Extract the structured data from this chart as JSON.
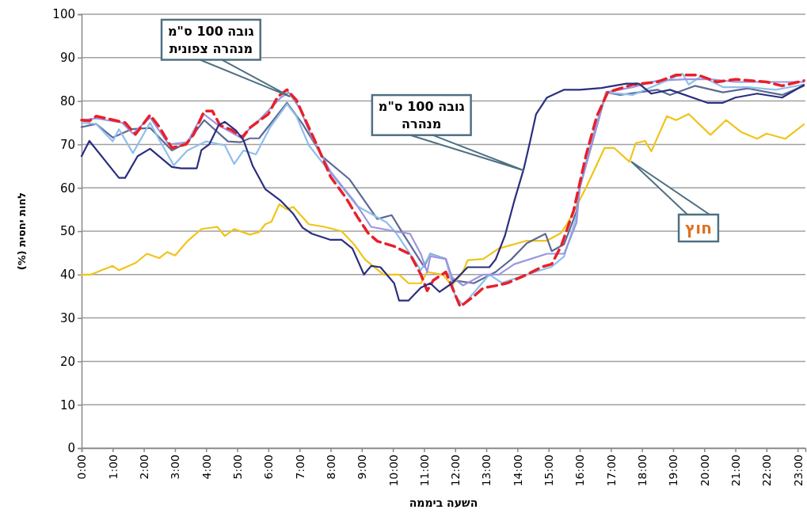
{
  "chart_data": {
    "type": "line",
    "xlabel": "השעה ביממה",
    "ylabel": "לחות יחסית (%)",
    "xlim": [
      0,
      23.25
    ],
    "ylim": [
      0,
      100
    ],
    "yticks": [
      0,
      10,
      20,
      30,
      40,
      50,
      60,
      70,
      80,
      90,
      100
    ],
    "xticks": [
      {
        "value": 0,
        "label": "0:00"
      },
      {
        "value": 1,
        "label": "1:00"
      },
      {
        "value": 2,
        "label": "2:00"
      },
      {
        "value": 3,
        "label": "3:00"
      },
      {
        "value": 4,
        "label": "4:00"
      },
      {
        "value": 5,
        "label": "5:00"
      },
      {
        "value": 6,
        "label": "6:00"
      },
      {
        "value": 7,
        "label": "7:00"
      },
      {
        "value": 8,
        "label": "8:00"
      },
      {
        "value": 9,
        "label": "9:00"
      },
      {
        "value": 10,
        "label": "10:00"
      },
      {
        "value": 11,
        "label": "11:00"
      },
      {
        "value": 12,
        "label": "12:00"
      },
      {
        "value": 13,
        "label": "13:00"
      },
      {
        "value": 14,
        "label": "14:00"
      },
      {
        "value": 15,
        "label": "15:00"
      },
      {
        "value": 16,
        "label": "16:00"
      },
      {
        "value": 17,
        "label": "17:00"
      },
      {
        "value": 18,
        "label": "18:00"
      },
      {
        "value": 19,
        "label": "19:00"
      },
      {
        "value": 20,
        "label": "20:00"
      },
      {
        "value": 21,
        "label": "21:00"
      },
      {
        "value": 22,
        "label": "22:00"
      },
      {
        "value": 23,
        "label": "23:00"
      }
    ],
    "grid": "y",
    "marker": "none",
    "series": [
      {
        "color": "#f0c419",
        "x": [
          0,
          0.3,
          1.0,
          1.2,
          1.74,
          2.1,
          2.5,
          2.75,
          3.0,
          3.4,
          3.85,
          4.36,
          4.6,
          4.9,
          5.4,
          5.7,
          5.9,
          6.1,
          6.35,
          6.6,
          6.8,
          7.3,
          7.8,
          8.35,
          8.75,
          9.1,
          9.7,
          10.2,
          10.5,
          10.9,
          11.1,
          11.6,
          11.9,
          12.25,
          12.4,
          12.9,
          13.4,
          14.3,
          14.95,
          15.4,
          15.6,
          16.2,
          16.8,
          17.1,
          17.6,
          17.8,
          18.1,
          18.3,
          18.8,
          19.1,
          19.5,
          20.2,
          20.7,
          21.2,
          21.7,
          22,
          22.6,
          23.2
        ],
        "values": [
          40,
          40,
          42,
          41,
          42.7,
          44.8,
          43.8,
          45.2,
          44.4,
          47.7,
          50.5,
          51,
          48.9,
          50.5,
          49.2,
          49.8,
          51.6,
          52.2,
          56.2,
          55,
          55.6,
          51.6,
          51,
          50,
          47,
          43.5,
          40,
          40,
          38,
          38,
          40.6,
          40,
          37.5,
          40.6,
          43.3,
          43.6,
          46,
          47.8,
          47.8,
          49.6,
          51.7,
          60,
          69.2,
          69.2,
          66,
          70.3,
          70.8,
          68.4,
          76.5,
          75.6,
          77,
          72.2,
          75.6,
          72.8,
          71.3,
          72.5,
          71.3,
          74.6
        ]
      },
      {
        "color": "#5c6a94",
        "x": [
          0,
          0.47,
          1.0,
          1.6,
          2.2,
          2.9,
          3.4,
          3.94,
          4.7,
          5.1,
          5.4,
          5.7,
          6.6,
          7.1,
          7.75,
          8.6,
          9.5,
          9.96,
          10.3,
          11.0,
          11.2,
          11.7,
          11.9,
          12.6,
          13.3,
          13.8,
          14.3,
          14.9,
          15.1,
          15.5,
          15.9,
          16.0,
          16.85,
          17.3,
          18.5,
          18.9,
          19.7,
          20.6,
          21.4,
          22.5,
          23.2
        ],
        "values": [
          74,
          74.7,
          71.6,
          73.5,
          73.8,
          68.6,
          70.5,
          75.6,
          70.7,
          70.5,
          71.4,
          71.4,
          79.6,
          74.7,
          67.1,
          62,
          52.8,
          53.7,
          49.7,
          41.8,
          44.8,
          43.6,
          38.7,
          38,
          40.6,
          43.5,
          47.2,
          49.4,
          45.4,
          47,
          54.6,
          60,
          82,
          81.4,
          82.6,
          81.4,
          83.5,
          82,
          82.9,
          81.4,
          83.5
        ]
      },
      {
        "color": "#8fbfec",
        "x": [
          0,
          0.47,
          1.0,
          1.2,
          1.65,
          2.2,
          2.5,
          2.96,
          3.4,
          4.0,
          4.6,
          4.9,
          5.2,
          5.6,
          6.06,
          6.6,
          6.9,
          7.3,
          8.1,
          8.85,
          9.8,
          10.1,
          10.9,
          11.2,
          11.7,
          12.0,
          12.25,
          12.6,
          13.1,
          13.5,
          14.3,
          15.1,
          15.5,
          15.9,
          16.0,
          16.4,
          16.85,
          17.7,
          18.7,
          19.3,
          19.5,
          19.9,
          20.6,
          21.4,
          22.3,
          23.2
        ],
        "values": [
          75,
          74.7,
          70.7,
          73.5,
          68,
          75,
          71,
          65.2,
          68.6,
          70.7,
          69.8,
          65.5,
          68.6,
          67.7,
          74,
          79.3,
          76.5,
          69.8,
          62.5,
          55.8,
          52,
          49.6,
          41,
          44.7,
          43.6,
          35.1,
          33,
          35.8,
          40,
          38.1,
          40,
          41.8,
          44.2,
          53.4,
          60,
          71.6,
          82,
          81.4,
          84.4,
          86.3,
          83.8,
          85.7,
          83.2,
          83.2,
          82.6,
          83.8
        ]
      },
      {
        "color": "#9b96e0",
        "x": [
          0,
          0.47,
          1.3,
          1.65,
          2.2,
          2.8,
          3.4,
          3.9,
          4.4,
          5.1,
          5.7,
          6.4,
          6.65,
          7.0,
          7.4,
          8.0,
          8.75,
          9.3,
          10.04,
          10.55,
          10.9,
          11.1,
          11.2,
          11.7,
          11.9,
          12.25,
          12.9,
          13.4,
          13.9,
          14.95,
          15.5,
          15.9,
          16.0,
          16.4,
          16.85,
          17.7,
          18.5,
          19.4,
          20.2,
          21,
          21.9,
          23.2
        ],
        "values": [
          75.6,
          76,
          75,
          72.5,
          76.2,
          70,
          70.5,
          77.1,
          74.4,
          71.6,
          75.6,
          80.8,
          82,
          78.4,
          71.6,
          63.7,
          57,
          51,
          50,
          49.4,
          44.7,
          40.6,
          44.2,
          43.6,
          39.4,
          37.5,
          40,
          40,
          42.4,
          44.8,
          44.8,
          52,
          60,
          70.5,
          82,
          83.2,
          84.7,
          85,
          85,
          84.4,
          84.4,
          84.4
        ]
      },
      {
        "color": "#e8202a",
        "line_style": "dashed",
        "x": [
          0,
          0.25,
          0.47,
          0.8,
          1.4,
          1.73,
          2.2,
          2.5,
          2.9,
          3.35,
          3.6,
          3.94,
          4.2,
          4.45,
          4.8,
          5.17,
          5.4,
          6.0,
          6.3,
          6.6,
          6.9,
          7.25,
          7.6,
          8.0,
          8.5,
          8.85,
          9.2,
          9.5,
          10.04,
          10.55,
          10.9,
          11.1,
          11.3,
          11.7,
          12.16,
          12.6,
          12.9,
          13.35,
          13.7,
          14.3,
          14.8,
          15.1,
          15.4,
          15.8,
          16.2,
          16.55,
          16.9,
          17.7,
          18.5,
          19.1,
          19.8,
          20.4,
          21,
          22,
          22.5,
          23.2
        ],
        "values": [
          75.6,
          75.4,
          76.5,
          76,
          75,
          72.3,
          76.8,
          74,
          69.2,
          70,
          72.3,
          77.7,
          77.7,
          74.4,
          73.4,
          71.6,
          73.8,
          77,
          81,
          82.6,
          80.2,
          74.7,
          69.2,
          62.5,
          57.6,
          53.4,
          49.6,
          47.7,
          46.5,
          44.7,
          40,
          36.3,
          38.7,
          40.6,
          32.6,
          35,
          36.9,
          37.5,
          38.1,
          40,
          41.8,
          42.4,
          46.5,
          54.6,
          67.4,
          76.5,
          82,
          83.8,
          84.4,
          86,
          86,
          84.4,
          85,
          84.4,
          83.5,
          84.7
        ]
      },
      {
        "color": "#2a2f7f",
        "x": [
          0,
          0.25,
          1.2,
          1.4,
          1.8,
          2.2,
          2.9,
          3.2,
          3.7,
          3.85,
          4.1,
          4.4,
          4.6,
          4.96,
          5.2,
          5.5,
          5.9,
          6.4,
          6.8,
          7.1,
          7.4,
          8.0,
          8.35,
          8.7,
          9.07,
          9.3,
          9.6,
          10.04,
          10.2,
          10.5,
          10.9,
          11.2,
          11.5,
          11.9,
          12.4,
          13.1,
          13.3,
          13.6,
          13.9,
          14.2,
          14.4,
          14.6,
          14.95,
          15.5,
          16,
          16.7,
          17.5,
          17.9,
          18.3,
          18.9,
          20.1,
          20.6,
          21,
          21.7,
          22.5,
          23.2
        ],
        "values": [
          67.3,
          70.8,
          62.3,
          62.3,
          67.3,
          69,
          64.8,
          64.5,
          64.5,
          68.7,
          70,
          74.4,
          75.2,
          73.2,
          71,
          65,
          59.7,
          57,
          54,
          50.8,
          49.4,
          48,
          48,
          46,
          40,
          42,
          41.7,
          38,
          34,
          34,
          37,
          38,
          36,
          38,
          41.7,
          41.7,
          43.5,
          49,
          57,
          64.3,
          70.5,
          77,
          80.8,
          82.6,
          82.6,
          83,
          84,
          84,
          81.7,
          82.6,
          79.6,
          79.6,
          80.8,
          81.7,
          80.8,
          83.7
        ]
      }
    ],
    "annotations": [
      {
        "text": "גובה 100 ס\"מ מנהרה צפונית",
        "x": 6.7,
        "y": 81
      },
      {
        "text": "גובה 100 ס\"מ מנהרה",
        "x": 14.2,
        "y": 64
      },
      "חוץ"
    ]
  }
}
